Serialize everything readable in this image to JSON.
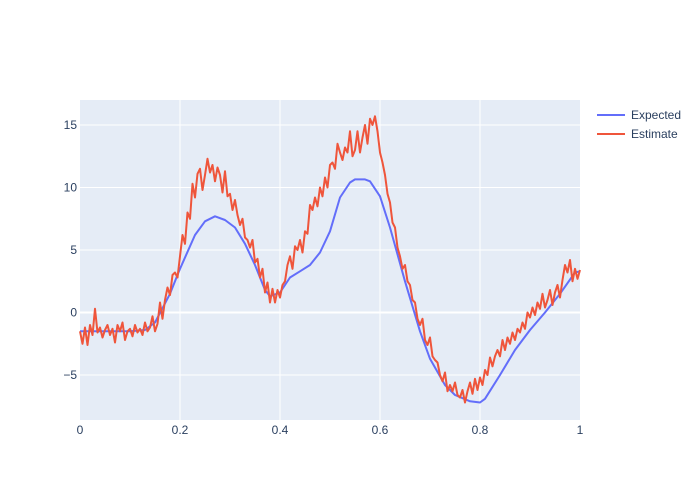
{
  "chart_data": {
    "type": "line",
    "title": "",
    "xlabel": "",
    "ylabel": "",
    "xlim": [
      0,
      1
    ],
    "ylim": [
      -8.6,
      17
    ],
    "x_ticks": [
      0,
      0.2,
      0.4,
      0.6,
      0.8,
      1
    ],
    "x_tick_labels": [
      "0",
      "0.2",
      "0.4",
      "0.6",
      "0.8",
      "1"
    ],
    "y_ticks": [
      -5,
      0,
      5,
      10,
      15
    ],
    "y_tick_labels": [
      "−5",
      "0",
      "5",
      "10",
      "15"
    ],
    "grid": true,
    "legend_position": "top-right",
    "colors": {
      "plot_background": "#e5ecf6",
      "grid": "#ffffff",
      "text": "#2a3f5f"
    },
    "series": [
      {
        "name": "Expected",
        "color": "#636efa",
        "points": [
          [
            0,
            -1.5
          ],
          [
            0.05,
            -1.5
          ],
          [
            0.1,
            -1.5
          ],
          [
            0.13,
            -1.4
          ],
          [
            0.15,
            -0.8
          ],
          [
            0.18,
            1.5
          ],
          [
            0.2,
            3.5
          ],
          [
            0.23,
            6.2
          ],
          [
            0.25,
            7.3
          ],
          [
            0.27,
            7.7
          ],
          [
            0.29,
            7.4
          ],
          [
            0.31,
            6.8
          ],
          [
            0.33,
            5.5
          ],
          [
            0.35,
            3.8
          ],
          [
            0.37,
            1.8
          ],
          [
            0.38,
            1.3
          ],
          [
            0.4,
            1.6
          ],
          [
            0.42,
            2.8
          ],
          [
            0.44,
            3.3
          ],
          [
            0.46,
            3.8
          ],
          [
            0.48,
            4.8
          ],
          [
            0.5,
            6.5
          ],
          [
            0.52,
            9.2
          ],
          [
            0.54,
            10.4
          ],
          [
            0.55,
            10.65
          ],
          [
            0.57,
            10.65
          ],
          [
            0.58,
            10.5
          ],
          [
            0.6,
            9.3
          ],
          [
            0.62,
            6.8
          ],
          [
            0.65,
            2.5
          ],
          [
            0.68,
            -1.5
          ],
          [
            0.7,
            -3.7
          ],
          [
            0.73,
            -5.8
          ],
          [
            0.75,
            -6.6
          ],
          [
            0.78,
            -7.1
          ],
          [
            0.8,
            -7.2
          ],
          [
            0.81,
            -6.9
          ],
          [
            0.84,
            -5
          ],
          [
            0.87,
            -3
          ],
          [
            0.9,
            -1.4
          ],
          [
            0.93,
            0
          ],
          [
            0.96,
            1.5
          ],
          [
            0.99,
            3.2
          ],
          [
            1,
            3.3
          ]
        ]
      },
      {
        "name": "Estimate",
        "color": "#ef553b",
        "points": [
          [
            0,
            -1.5
          ],
          [
            0.005,
            -2.5
          ],
          [
            0.01,
            -1.2
          ],
          [
            0.015,
            -2.6
          ],
          [
            0.02,
            -1
          ],
          [
            0.025,
            -1.8
          ],
          [
            0.03,
            0.3
          ],
          [
            0.035,
            -1.6
          ],
          [
            0.04,
            -1.2
          ],
          [
            0.045,
            -2
          ],
          [
            0.05,
            -1.4
          ],
          [
            0.055,
            -1
          ],
          [
            0.06,
            -1.8
          ],
          [
            0.065,
            -1.3
          ],
          [
            0.07,
            -2.4
          ],
          [
            0.075,
            -1
          ],
          [
            0.08,
            -1.5
          ],
          [
            0.085,
            -0.8
          ],
          [
            0.09,
            -2.2
          ],
          [
            0.095,
            -1.5
          ],
          [
            0.1,
            -1.3
          ],
          [
            0.105,
            -1.9
          ],
          [
            0.11,
            -1
          ],
          [
            0.115,
            -1.6
          ],
          [
            0.12,
            -1.3
          ],
          [
            0.125,
            -1.8
          ],
          [
            0.13,
            -0.8
          ],
          [
            0.135,
            -1.5
          ],
          [
            0.14,
            -1.2
          ],
          [
            0.145,
            -0.3
          ],
          [
            0.15,
            -1.5
          ],
          [
            0.155,
            -0.9
          ],
          [
            0.16,
            0.8
          ],
          [
            0.165,
            -0.5
          ],
          [
            0.17,
            1
          ],
          [
            0.175,
            2
          ],
          [
            0.18,
            1.4
          ],
          [
            0.185,
            3
          ],
          [
            0.19,
            3.2
          ],
          [
            0.195,
            2.8
          ],
          [
            0.2,
            4.5
          ],
          [
            0.205,
            6.2
          ],
          [
            0.21,
            5.5
          ],
          [
            0.215,
            8
          ],
          [
            0.22,
            7.5
          ],
          [
            0.225,
            10.3
          ],
          [
            0.23,
            9.2
          ],
          [
            0.235,
            11.1
          ],
          [
            0.24,
            11.5
          ],
          [
            0.245,
            9.8
          ],
          [
            0.25,
            11
          ],
          [
            0.255,
            12.3
          ],
          [
            0.26,
            11.2
          ],
          [
            0.265,
            11.8
          ],
          [
            0.27,
            10.5
          ],
          [
            0.275,
            11.6
          ],
          [
            0.28,
            11
          ],
          [
            0.285,
            9.6
          ],
          [
            0.29,
            11.3
          ],
          [
            0.295,
            9.3
          ],
          [
            0.3,
            9.5
          ],
          [
            0.305,
            8.2
          ],
          [
            0.31,
            9
          ],
          [
            0.315,
            7.8
          ],
          [
            0.32,
            7
          ],
          [
            0.325,
            7.5
          ],
          [
            0.33,
            6
          ],
          [
            0.335,
            5.8
          ],
          [
            0.34,
            5.2
          ],
          [
            0.345,
            5.8
          ],
          [
            0.35,
            4
          ],
          [
            0.355,
            4.3
          ],
          [
            0.36,
            2.8
          ],
          [
            0.365,
            3.5
          ],
          [
            0.37,
            1.6
          ],
          [
            0.375,
            2.4
          ],
          [
            0.38,
            0.8
          ],
          [
            0.385,
            1.9
          ],
          [
            0.39,
            0.8
          ],
          [
            0.395,
            1.8
          ],
          [
            0.4,
            1.2
          ],
          [
            0.405,
            2.2
          ],
          [
            0.41,
            2.5
          ],
          [
            0.415,
            3.8
          ],
          [
            0.42,
            4.5
          ],
          [
            0.425,
            3.5
          ],
          [
            0.43,
            5.3
          ],
          [
            0.435,
            5
          ],
          [
            0.44,
            5.8
          ],
          [
            0.445,
            4.8
          ],
          [
            0.45,
            6.5
          ],
          [
            0.455,
            6.3
          ],
          [
            0.46,
            8.6
          ],
          [
            0.465,
            8.2
          ],
          [
            0.47,
            9.2
          ],
          [
            0.475,
            8.5
          ],
          [
            0.48,
            10
          ],
          [
            0.485,
            9.3
          ],
          [
            0.49,
            10.8
          ],
          [
            0.495,
            10
          ],
          [
            0.5,
            11.8
          ],
          [
            0.505,
            12
          ],
          [
            0.51,
            11.5
          ],
          [
            0.515,
            13.5
          ],
          [
            0.52,
            12.8
          ],
          [
            0.525,
            12.2
          ],
          [
            0.53,
            13.2
          ],
          [
            0.535,
            12.8
          ],
          [
            0.54,
            14.5
          ],
          [
            0.545,
            12.5
          ],
          [
            0.55,
            13
          ],
          [
            0.555,
            14.5
          ],
          [
            0.56,
            12.8
          ],
          [
            0.565,
            14
          ],
          [
            0.57,
            15
          ],
          [
            0.575,
            13.5
          ],
          [
            0.58,
            15.5
          ],
          [
            0.585,
            15
          ],
          [
            0.59,
            15.7
          ],
          [
            0.595,
            14.5
          ],
          [
            0.6,
            12.8
          ],
          [
            0.605,
            12
          ],
          [
            0.61,
            11
          ],
          [
            0.615,
            9.5
          ],
          [
            0.62,
            8.8
          ],
          [
            0.625,
            7.2
          ],
          [
            0.63,
            6.8
          ],
          [
            0.635,
            5.2
          ],
          [
            0.64,
            4.5
          ],
          [
            0.645,
            3.5
          ],
          [
            0.65,
            3.8
          ],
          [
            0.655,
            2.5
          ],
          [
            0.66,
            2.2
          ],
          [
            0.665,
            1
          ],
          [
            0.67,
            0.8
          ],
          [
            0.675,
            -0.5
          ],
          [
            0.68,
            -1
          ],
          [
            0.685,
            -0.5
          ],
          [
            0.69,
            -2.2
          ],
          [
            0.695,
            -2.6
          ],
          [
            0.7,
            -2
          ],
          [
            0.705,
            -3.5
          ],
          [
            0.71,
            -3.8
          ],
          [
            0.715,
            -4
          ],
          [
            0.72,
            -5
          ],
          [
            0.725,
            -5.5
          ],
          [
            0.73,
            -4.8
          ],
          [
            0.735,
            -6.3
          ],
          [
            0.74,
            -5.8
          ],
          [
            0.745,
            -6.3
          ],
          [
            0.75,
            -5.6
          ],
          [
            0.755,
            -6.6
          ],
          [
            0.76,
            -6.8
          ],
          [
            0.765,
            -6.2
          ],
          [
            0.77,
            -7.2
          ],
          [
            0.775,
            -6.3
          ],
          [
            0.78,
            -5.6
          ],
          [
            0.785,
            -6.5
          ],
          [
            0.79,
            -5.3
          ],
          [
            0.795,
            -6.2
          ],
          [
            0.8,
            -5.2
          ],
          [
            0.805,
            -5.8
          ],
          [
            0.81,
            -4.6
          ],
          [
            0.815,
            -5
          ],
          [
            0.82,
            -3.6
          ],
          [
            0.825,
            -4.3
          ],
          [
            0.83,
            -3.5
          ],
          [
            0.835,
            -3
          ],
          [
            0.84,
            -3.5
          ],
          [
            0.845,
            -2.2
          ],
          [
            0.85,
            -3
          ],
          [
            0.855,
            -2
          ],
          [
            0.86,
            -2.5
          ],
          [
            0.865,
            -1.6
          ],
          [
            0.87,
            -2.2
          ],
          [
            0.875,
            -1.3
          ],
          [
            0.88,
            -1.6
          ],
          [
            0.885,
            -0.8
          ],
          [
            0.89,
            -1.3
          ],
          [
            0.895,
            0
          ],
          [
            0.9,
            -0.4
          ],
          [
            0.905,
            0.4
          ],
          [
            0.91,
            -0.2
          ],
          [
            0.915,
            0.8
          ],
          [
            0.92,
            0.3
          ],
          [
            0.925,
            1.5
          ],
          [
            0.93,
            0.4
          ],
          [
            0.935,
            1
          ],
          [
            0.94,
            1.8
          ],
          [
            0.945,
            0.6
          ],
          [
            0.95,
            1.6
          ],
          [
            0.955,
            2.2
          ],
          [
            0.96,
            1.2
          ],
          [
            0.965,
            2.6
          ],
          [
            0.97,
            3.8
          ],
          [
            0.975,
            3.2
          ],
          [
            0.98,
            4.2
          ],
          [
            0.985,
            2.5
          ],
          [
            0.99,
            3.5
          ],
          [
            0.995,
            2.7
          ],
          [
            1,
            3.4
          ]
        ]
      }
    ]
  }
}
